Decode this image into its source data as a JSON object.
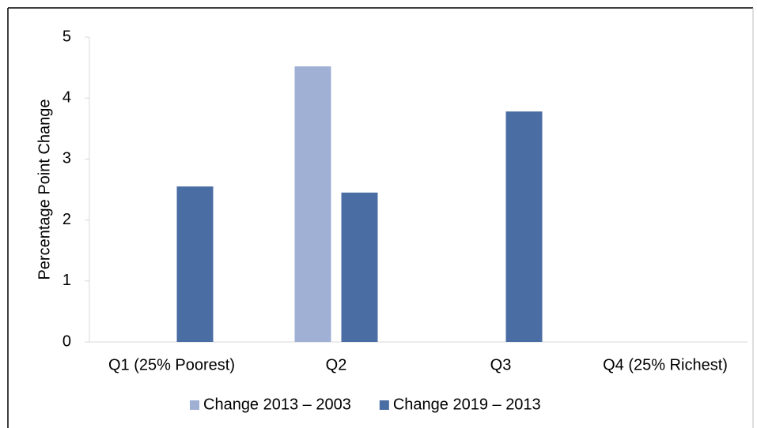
{
  "chart_data": {
    "type": "bar",
    "y_label": "Percentage Point Change",
    "categories": [
      "Q1 (25% Poorest)",
      "Q2",
      "Q3",
      "Q4 (25% Richest)"
    ],
    "series": [
      {
        "name": "Change 2013 – 2003",
        "color": "#9fb0d4",
        "values": [
          null,
          4.52,
          null,
          null
        ]
      },
      {
        "name": "Change 2019 – 2013",
        "color": "#4a6da4",
        "values": [
          2.55,
          2.45,
          3.78,
          null
        ]
      }
    ],
    "ylim": [
      0,
      5
    ],
    "yticks": [
      0,
      1,
      2,
      3,
      4,
      5
    ],
    "grid": false,
    "legend": "bottom"
  }
}
